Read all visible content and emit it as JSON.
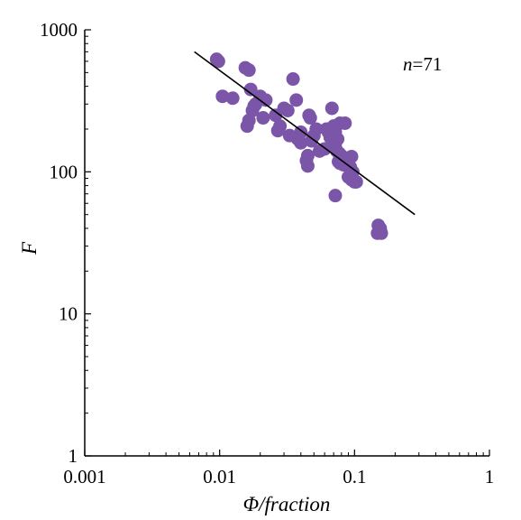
{
  "chart_data": {
    "type": "scatter",
    "xlabel": "Φ/fraction",
    "ylabel": "F",
    "x_scale": "log",
    "y_scale": "log",
    "xlim": [
      0.001,
      1
    ],
    "ylim": [
      1,
      1000
    ],
    "x_ticks": [
      {
        "value": 0.001,
        "label": "0.001"
      },
      {
        "value": 0.01,
        "label": "0.01"
      },
      {
        "value": 0.1,
        "label": "0.1"
      },
      {
        "value": 1,
        "label": "1"
      }
    ],
    "y_ticks": [
      {
        "value": 1,
        "label": "1"
      },
      {
        "value": 10,
        "label": "10"
      },
      {
        "value": 100,
        "label": "100"
      },
      {
        "value": 1000,
        "label": "1000"
      }
    ],
    "annotation": {
      "italic": "n",
      "text": "=71"
    },
    "grid": false,
    "marker_color": "#7B55A8",
    "line_color": "#000000",
    "fit_line": {
      "x": [
        0.0065,
        0.28
      ],
      "y": [
        700,
        50
      ]
    },
    "points": [
      [
        0.0095,
        620
      ],
      [
        0.0098,
        600
      ],
      [
        0.0155,
        540
      ],
      [
        0.0165,
        520
      ],
      [
        0.0105,
        340
      ],
      [
        0.0125,
        330
      ],
      [
        0.017,
        380
      ],
      [
        0.02,
        340
      ],
      [
        0.022,
        320
      ],
      [
        0.018,
        290
      ],
      [
        0.0175,
        270
      ],
      [
        0.0185,
        300
      ],
      [
        0.0165,
        230
      ],
      [
        0.016,
        210
      ],
      [
        0.021,
        240
      ],
      [
        0.026,
        250
      ],
      [
        0.03,
        280
      ],
      [
        0.032,
        270
      ],
      [
        0.035,
        450
      ],
      [
        0.037,
        320
      ],
      [
        0.028,
        210
      ],
      [
        0.027,
        195
      ],
      [
        0.033,
        180
      ],
      [
        0.04,
        190
      ],
      [
        0.038,
        170
      ],
      [
        0.04,
        160
      ],
      [
        0.046,
        250
      ],
      [
        0.047,
        240
      ],
      [
        0.052,
        200
      ],
      [
        0.05,
        180
      ],
      [
        0.048,
        165
      ],
      [
        0.055,
        140
      ],
      [
        0.045,
        130
      ],
      [
        0.044,
        120
      ],
      [
        0.045,
        110
      ],
      [
        0.06,
        145
      ],
      [
        0.062,
        200
      ],
      [
        0.064,
        190
      ],
      [
        0.068,
        280
      ],
      [
        0.072,
        190
      ],
      [
        0.075,
        170
      ],
      [
        0.078,
        220
      ],
      [
        0.085,
        220
      ],
      [
        0.07,
        210
      ],
      [
        0.066,
        175
      ],
      [
        0.069,
        160
      ],
      [
        0.072,
        150
      ],
      [
        0.074,
        140
      ],
      [
        0.077,
        135
      ],
      [
        0.08,
        130
      ],
      [
        0.082,
        125
      ],
      [
        0.086,
        118
      ],
      [
        0.09,
        112
      ],
      [
        0.093,
        108
      ],
      [
        0.076,
        118
      ],
      [
        0.078,
        115
      ],
      [
        0.08,
        120
      ],
      [
        0.083,
        112
      ],
      [
        0.088,
        120
      ],
      [
        0.092,
        125
      ],
      [
        0.095,
        128
      ],
      [
        0.097,
        100
      ],
      [
        0.095,
        88
      ],
      [
        0.1,
        85
      ],
      [
        0.103,
        85
      ],
      [
        0.09,
        92
      ],
      [
        0.072,
        68
      ],
      [
        0.15,
        42
      ],
      [
        0.155,
        40
      ],
      [
        0.148,
        37
      ],
      [
        0.158,
        37
      ]
    ]
  }
}
